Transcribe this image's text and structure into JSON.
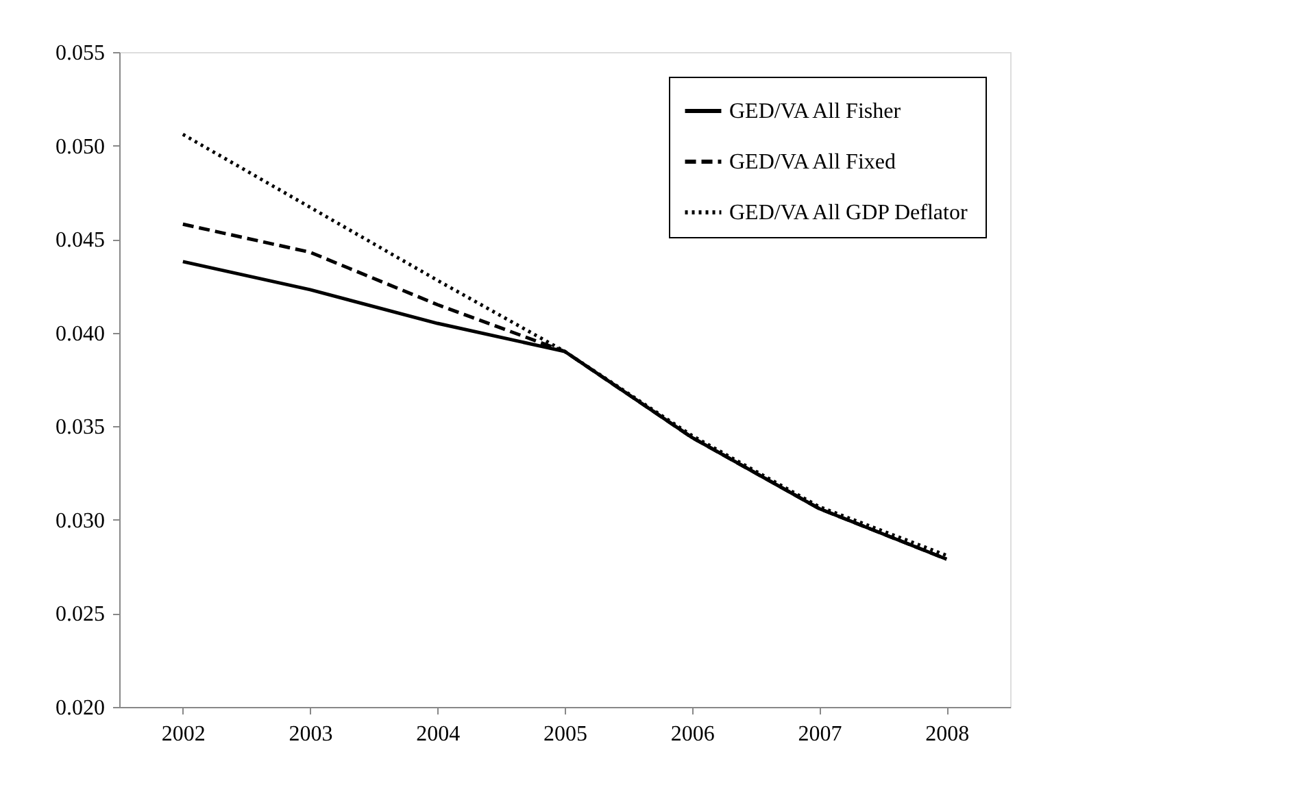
{
  "chart_data": {
    "type": "line",
    "categories": [
      "2002",
      "2003",
      "2004",
      "2005",
      "2006",
      "2007",
      "2008"
    ],
    "ylim": [
      0.02,
      0.055
    ],
    "yticks": [
      {
        "value": 0.02,
        "label": "0.020"
      },
      {
        "value": 0.025,
        "label": "0.025"
      },
      {
        "value": 0.03,
        "label": "0.030"
      },
      {
        "value": 0.035,
        "label": "0.035"
      },
      {
        "value": 0.04,
        "label": "0.040"
      },
      {
        "value": 0.045,
        "label": "0.045"
      },
      {
        "value": 0.05,
        "label": "0.050"
      },
      {
        "value": 0.055,
        "label": "0.055"
      }
    ],
    "grid": false,
    "legend": "top right",
    "marker": "none",
    "series": [
      {
        "name": "GED/VA All Fisher",
        "color": "#000000",
        "line_style": "solid",
        "values": [
          0.0438,
          0.0423,
          0.0405,
          0.039,
          0.0344,
          0.0306,
          0.0279
        ]
      },
      {
        "name": "GED/VA All Fixed",
        "color": "#000000",
        "line_style": "dashed",
        "values": [
          0.0458,
          0.0443,
          0.0415,
          0.039,
          0.0344,
          0.0306,
          0.0279
        ]
      },
      {
        "name": "GED/VA All GDP Deflator",
        "color": "#000000",
        "line_style": "dotted",
        "values": [
          0.0506,
          0.0467,
          0.0428,
          0.039,
          0.0345,
          0.0307,
          0.0281
        ]
      }
    ]
  }
}
